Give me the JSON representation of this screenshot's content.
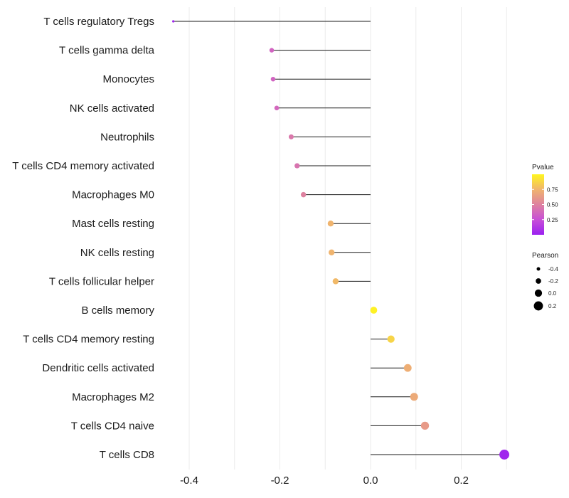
{
  "chart_data": {
    "type": "lollipop",
    "title": "",
    "xlabel": "",
    "ylabel": "",
    "xlim": [
      -0.44,
      0.31
    ],
    "x_ticks": [
      -0.4,
      -0.2,
      0.0,
      0.2
    ],
    "x_tick_labels": [
      "-0.4",
      "-0.2",
      "0.0",
      "0.2"
    ],
    "grid": true,
    "categories": [
      "T cells regulatory  Tregs",
      "T cells gamma delta",
      "Monocytes",
      "NK cells activated",
      "Neutrophils",
      "T cells CD4 memory activated",
      "Macrophages M0",
      "Mast cells resting",
      "NK cells resting",
      "T cells follicular helper",
      "B cells memory",
      "T cells CD4 memory resting",
      "Dendritic cells activated",
      "Macrophages M2",
      "T cells CD4 naive",
      "T cells CD8"
    ],
    "pearson": [
      -0.435,
      -0.218,
      -0.215,
      -0.207,
      -0.175,
      -0.162,
      -0.148,
      -0.088,
      -0.086,
      -0.077,
      0.007,
      0.045,
      0.082,
      0.096,
      0.12,
      0.295
    ],
    "pvalue": [
      0.02,
      0.35,
      0.35,
      0.37,
      0.45,
      0.43,
      0.5,
      0.75,
      0.75,
      0.77,
      0.98,
      0.87,
      0.72,
      0.7,
      0.62,
      0.03
    ],
    "legend": {
      "color_title": "Pvalue",
      "color_ticks": [
        0.25,
        0.5,
        0.75
      ],
      "color_tick_labels": [
        "0.25",
        "0.50",
        "0.75"
      ],
      "color_range": [
        0.0,
        1.0
      ],
      "color_low": "#9a1ff0",
      "color_high": "#fff51f",
      "size_title": "Pearson",
      "size_values": [
        -0.4,
        -0.2,
        0.0,
        0.2
      ],
      "size_labels": [
        "-0.4",
        "-0.2",
        "0.0",
        "0.2"
      ],
      "placement": "right"
    }
  }
}
